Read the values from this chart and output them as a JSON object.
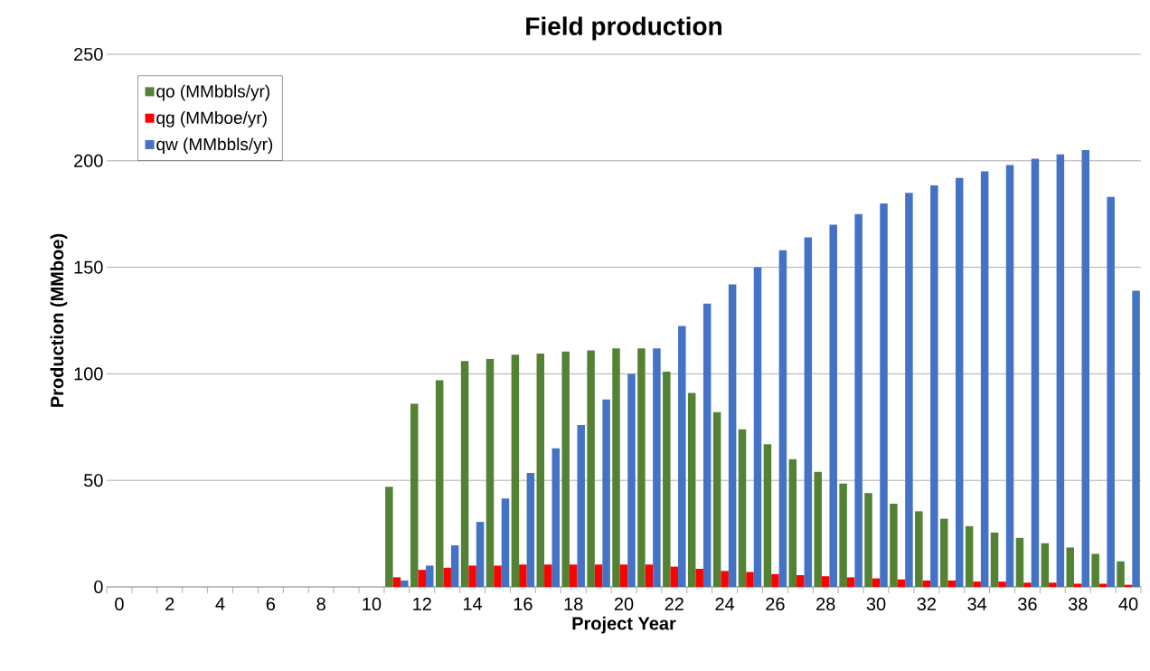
{
  "chart_data": {
    "type": "bar",
    "title": "Field production",
    "xlabel": "Project Year",
    "ylabel": "Production (MMboe)",
    "categories": [
      "0",
      null,
      "2",
      null,
      "4",
      null,
      "6",
      null,
      "8",
      null,
      "10",
      null,
      "12",
      null,
      "14",
      null,
      "16",
      null,
      "18",
      null,
      "20",
      null,
      "22",
      null,
      "24",
      null,
      "26",
      null,
      "28",
      null,
      "30",
      null,
      "32",
      null,
      "34",
      null,
      "36",
      null,
      "38",
      null,
      "40"
    ],
    "series": [
      {
        "name": "qo (MMbbls/yr)",
        "color": "#548235",
        "values": [
          null,
          null,
          null,
          null,
          null,
          null,
          null,
          null,
          null,
          null,
          null,
          47,
          86,
          97,
          106,
          107,
          109,
          109.5,
          110.5,
          111,
          112,
          112,
          101,
          91,
          82,
          74,
          67,
          60,
          54,
          48.5,
          44,
          39,
          35.5,
          32,
          28.5,
          25.5,
          23,
          20.5,
          18.5,
          15.5,
          12
        ]
      },
      {
        "name": "qg (MMboe/yr)",
        "color": "#ff0000",
        "values": [
          null,
          null,
          null,
          null,
          null,
          null,
          null,
          null,
          null,
          null,
          null,
          4.5,
          8,
          9,
          10,
          10,
          10.5,
          10.5,
          10.5,
          10.5,
          10.5,
          10.5,
          9.5,
          8.5,
          7.5,
          7,
          6,
          5.5,
          5,
          4.5,
          4,
          3.5,
          3,
          3,
          2.5,
          2.5,
          2,
          2,
          1.5,
          1.5,
          1
        ]
      },
      {
        "name": "qw (MMbbls/yr)",
        "color": "#4472c4",
        "values": [
          null,
          null,
          null,
          null,
          null,
          null,
          null,
          null,
          null,
          null,
          null,
          3,
          10,
          19.5,
          30.5,
          41.5,
          53.5,
          65,
          76,
          88,
          100,
          112,
          122.5,
          133,
          142,
          150,
          158,
          164,
          170,
          175,
          180,
          185,
          188.5,
          192,
          195,
          198,
          201,
          203,
          205,
          183,
          139
        ]
      }
    ],
    "ylim": [
      0,
      250
    ],
    "yticks": [
      0,
      50,
      100,
      150,
      200,
      250
    ],
    "grid": "y",
    "legend": "top left"
  }
}
